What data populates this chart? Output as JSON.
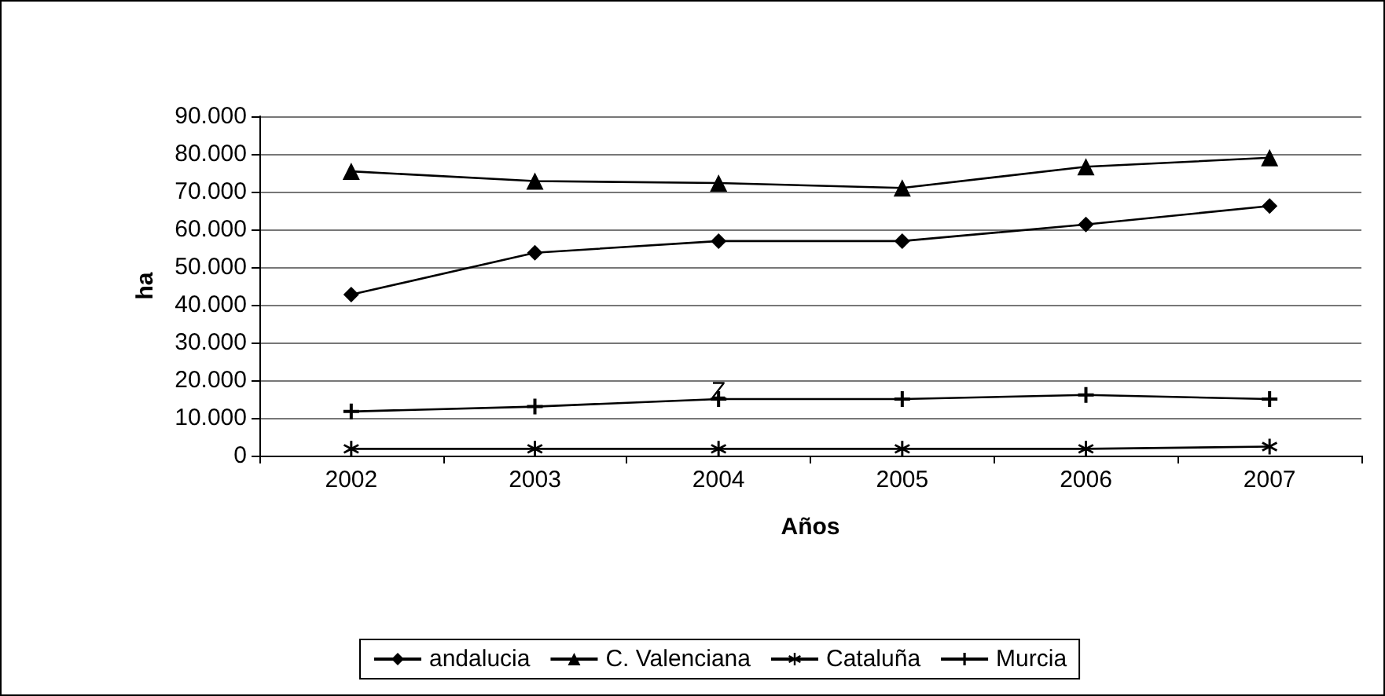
{
  "chart_data": {
    "type": "line",
    "xlabel": "Años",
    "ylabel": "ha",
    "categories": [
      "2002",
      "2003",
      "2004",
      "2005",
      "2006",
      "2007"
    ],
    "series": [
      {
        "name": "andalucia",
        "color": "#000000",
        "marker": "diamond",
        "values": [
          42700,
          53800,
          56900,
          56900,
          61300,
          66200
        ]
      },
      {
        "name": "C. Valenciana",
        "color": "#000000",
        "marker": "triangle",
        "values": [
          75400,
          72800,
          72300,
          71000,
          76600,
          79000
        ]
      },
      {
        "name": "Cataluña",
        "color": "#000000",
        "marker": "star",
        "values": [
          1800,
          1800,
          1800,
          1800,
          1800,
          2400
        ]
      },
      {
        "name": "Murcia",
        "color": "#000000",
        "marker": "cross",
        "values": [
          11700,
          13000,
          15000,
          15000,
          16100,
          15000
        ]
      }
    ],
    "annotations": [
      {
        "text": "Z",
        "x": "2004",
        "y": 17000
      }
    ],
    "ylim": [
      0,
      90000
    ],
    "yticks": [
      {
        "value": 0,
        "label": "0"
      },
      {
        "value": 10000,
        "label": "10.000"
      },
      {
        "value": 20000,
        "label": "20.000"
      },
      {
        "value": 30000,
        "label": "30.000"
      },
      {
        "value": 40000,
        "label": "40.000"
      },
      {
        "value": 50000,
        "label": "50.000"
      },
      {
        "value": 60000,
        "label": "60.000"
      },
      {
        "value": 70000,
        "label": "70.000"
      },
      {
        "value": 80000,
        "label": "80.000"
      },
      {
        "value": 90000,
        "label": "90.000"
      }
    ],
    "grid": "y",
    "legend": "bottom",
    "line_style": "solid"
  }
}
